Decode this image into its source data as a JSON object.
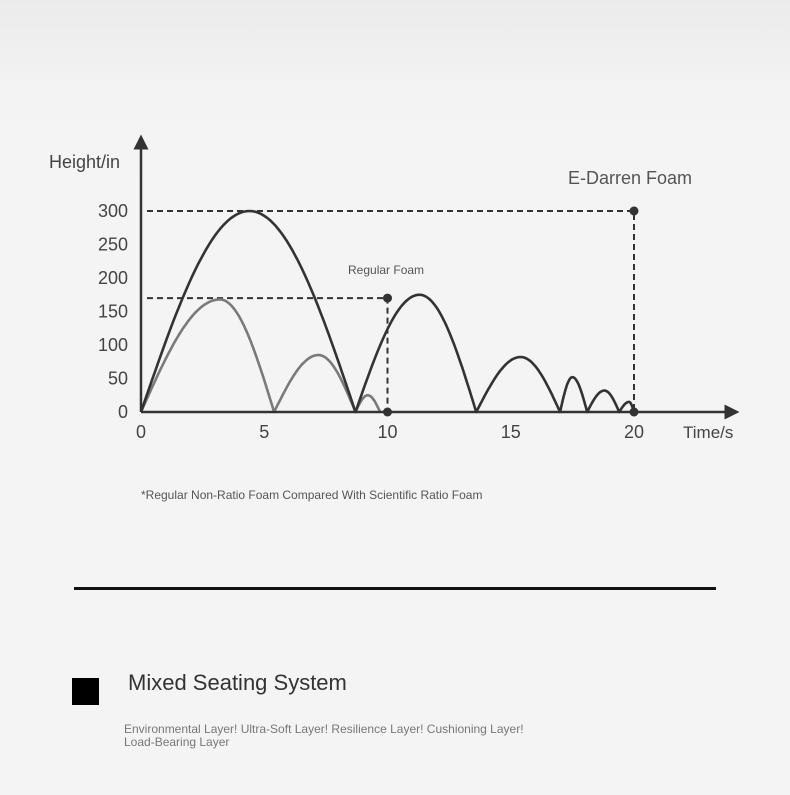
{
  "chart_data": {
    "type": "line",
    "ylabel": "Height/in",
    "xlabel": "Time/s",
    "xlim": [
      0,
      21
    ],
    "ylim": [
      0,
      320
    ],
    "x_ticks": [
      "0",
      "5",
      "10",
      "15",
      "20"
    ],
    "y_ticks": [
      "0",
      "50",
      "100",
      "150",
      "200",
      "250",
      "300"
    ],
    "grid": false,
    "series": [
      {
        "color": "#333333",
        "lobes": [
          {
            "start": 0,
            "peak_x": 4.4,
            "end": 8.7,
            "peak_y": 300
          },
          {
            "start": 8.7,
            "peak_x": 11.3,
            "end": 13.6,
            "peak_y": 175
          },
          {
            "start": 13.6,
            "peak_x": 15.4,
            "end": 17.0,
            "peak_y": 82
          },
          {
            "start": 17.0,
            "peak_x": 17.5,
            "end": 18.1,
            "peak_y": 52
          },
          {
            "start": 18.1,
            "peak_x": 18.8,
            "end": 19.4,
            "peak_y": 32
          },
          {
            "start": 19.4,
            "peak_x": 19.8,
            "end": 20.0,
            "peak_y": 15
          }
        ]
      },
      {
        "color": "#7a7a7a",
        "lobes": [
          {
            "start": 0,
            "peak_x": 3.2,
            "end": 5.4,
            "peak_y": 168
          },
          {
            "start": 5.4,
            "peak_x": 7.2,
            "end": 8.7,
            "peak_y": 85
          },
          {
            "start": 8.7,
            "peak_x": 9.2,
            "end": 9.7,
            "peak_y": 25
          }
        ]
      }
    ],
    "reference_lines": [
      {
        "y": 300,
        "x": 20
      },
      {
        "y": 170,
        "x": 10
      }
    ],
    "annotations": [
      {
        "text": "E-Darren Foam"
      },
      {
        "text": "Regular Foam"
      }
    ]
  },
  "footnote": "*Regular Non-Ratio Foam Compared With Scientific Ratio Foam",
  "section": {
    "title": "Mixed Seating System",
    "description": "Environmental Layer! Ultra-Soft Layer! Resilience Layer! Cushioning Layer! Load-Bearing Layer"
  }
}
